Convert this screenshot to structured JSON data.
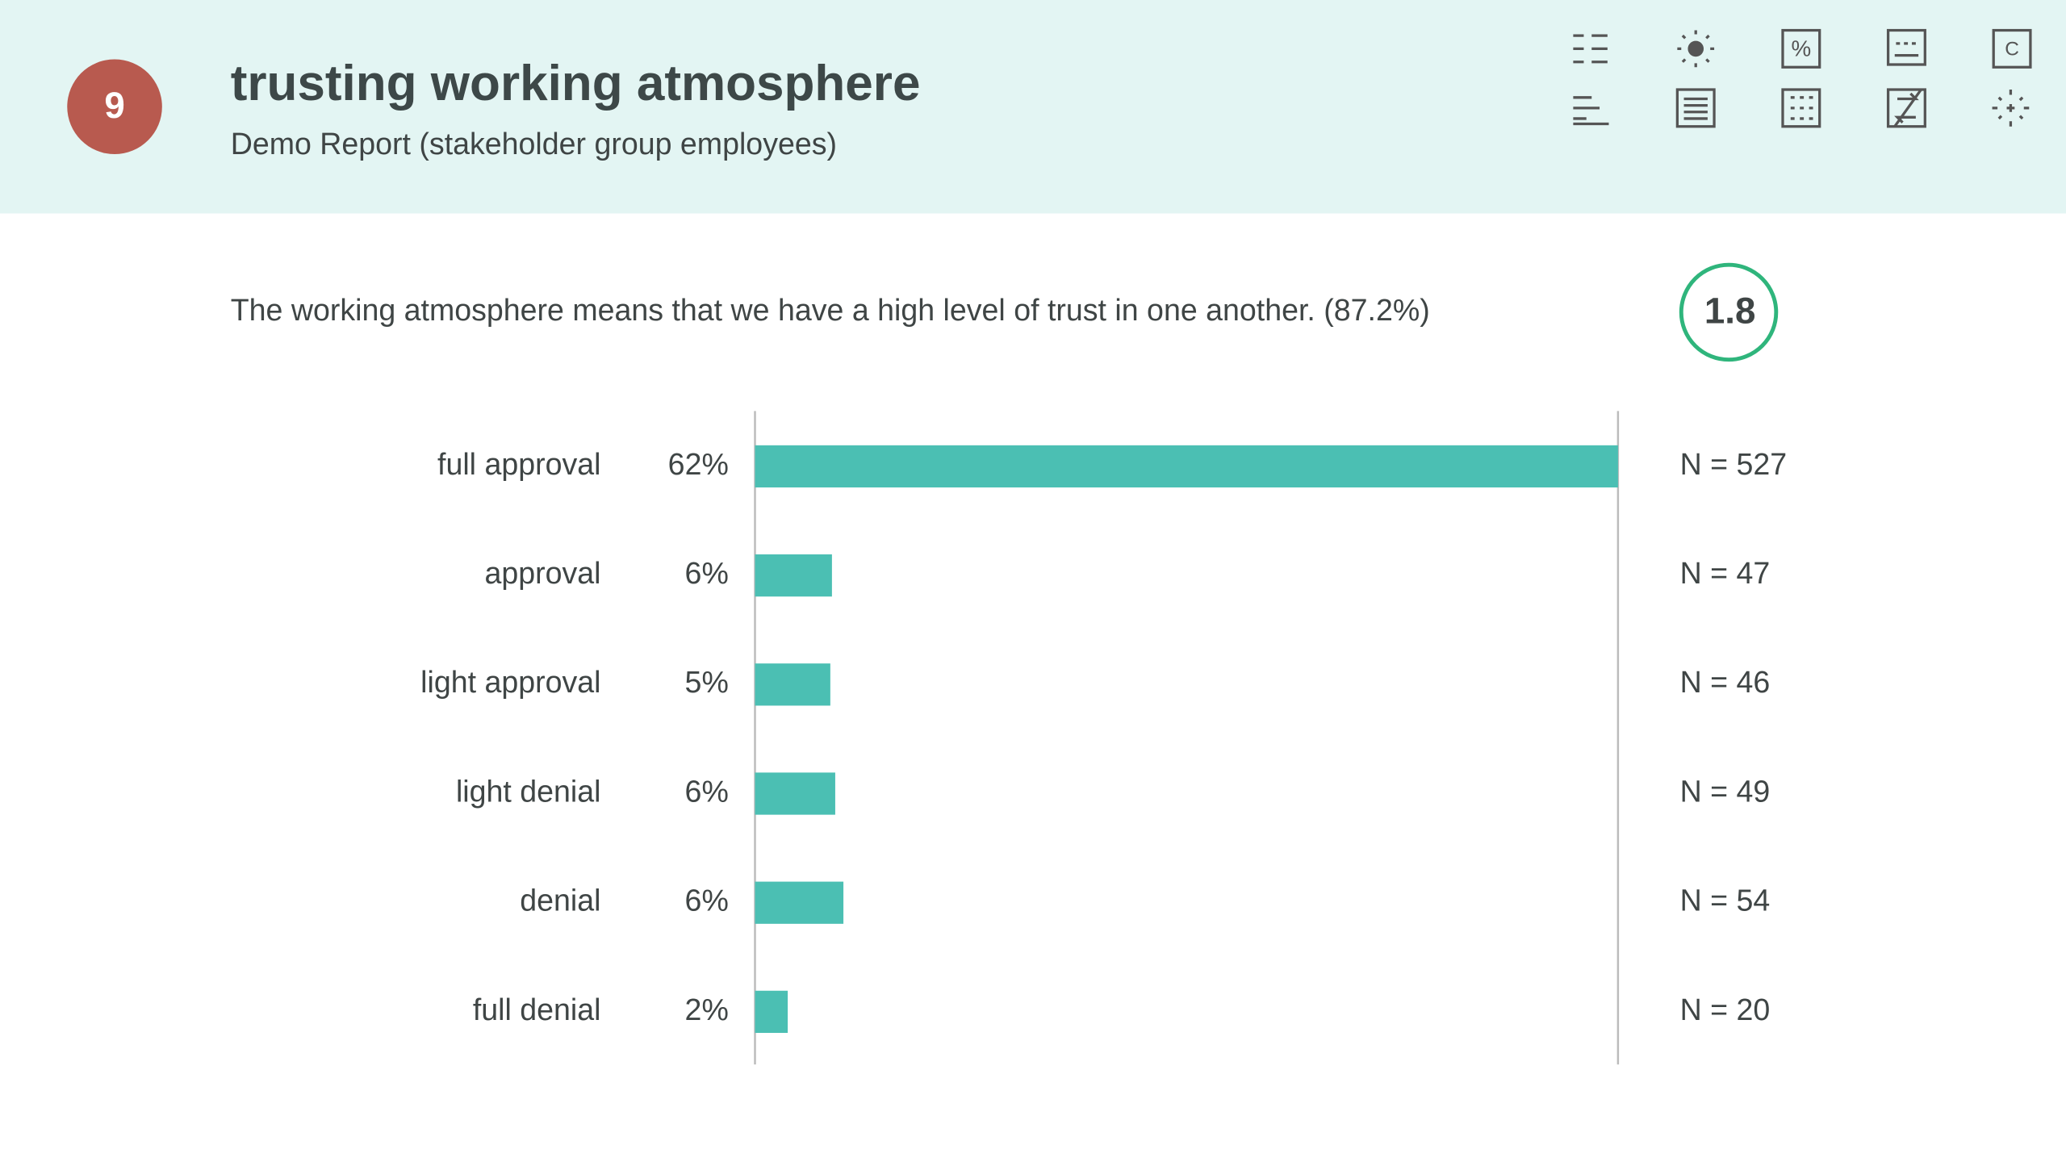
{
  "header": {
    "number": 9,
    "title": "trusting working atmosphere",
    "subtitle": "Demo Report (stakeholder group employees)"
  },
  "question": {
    "text": "The working atmosphere means that we have a high level of trust in one another. (87.2%)",
    "score": 1.8
  },
  "chart_data": {
    "type": "bar",
    "orientation": "horizontal",
    "categories": [
      "full approval",
      "approval",
      "light approval",
      "light denial",
      "denial",
      "full denial"
    ],
    "percentages": [
      62,
      6,
      5,
      6,
      6,
      2
    ],
    "percentage_labels": [
      "62%",
      "6%",
      "5%",
      "6%",
      "6%",
      "2%"
    ],
    "values": [
      527,
      47,
      46,
      49,
      54,
      20
    ],
    "value_labels": [
      "N = 527",
      "N = 47",
      "N = 46",
      "N = 49",
      "N = 54",
      "N = 20"
    ],
    "color": "#4bbfb3",
    "xlim": [
      0,
      527
    ]
  }
}
